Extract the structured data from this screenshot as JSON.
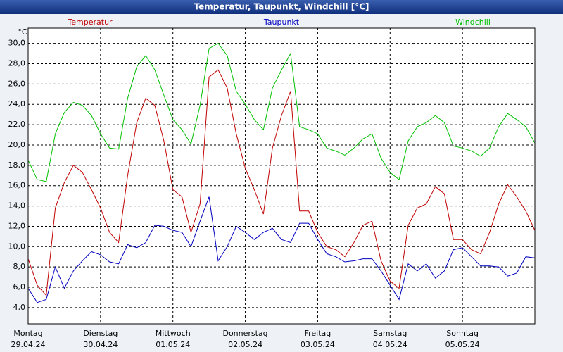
{
  "chart_data": {
    "type": "line",
    "title": "Temperatur, Taupunkt, Windchill [°C]",
    "y_label": "°C",
    "x": [
      0,
      3,
      6,
      9,
      12,
      15,
      18,
      21,
      24,
      27,
      30,
      33,
      36,
      39,
      42,
      45,
      48,
      51,
      54,
      57,
      60,
      63,
      66,
      69,
      72,
      75,
      78,
      81,
      84,
      87,
      90,
      93,
      96,
      99,
      102,
      105,
      108,
      111,
      114,
      117,
      120,
      123,
      126,
      129,
      132,
      135,
      138,
      141,
      144,
      147,
      150,
      153,
      156,
      159,
      162,
      165,
      168
    ],
    "xlim": [
      0,
      168
    ],
    "xticks": [
      {
        "value": 0,
        "label": "Montag"
      },
      {
        "value": 24,
        "label": "Dienstag"
      },
      {
        "value": 48,
        "label": "Mittwoch"
      },
      {
        "value": 72,
        "label": "Donnerstag"
      },
      {
        "value": 96,
        "label": "Freitag"
      },
      {
        "value": 120,
        "label": "Samstag"
      },
      {
        "value": 144,
        "label": "Sonntag"
      }
    ],
    "xtick_dates": [
      "29.04.24",
      "30.04.24",
      "01.05.24",
      "02.05.24",
      "03.05.24",
      "04.05.24",
      "05.05.24"
    ],
    "ylim": [
      2.4,
      31.5
    ],
    "yticks": [
      {
        "value": 4,
        "label": "4,0"
      },
      {
        "value": 6,
        "label": "6,0"
      },
      {
        "value": 8,
        "label": "8,0"
      },
      {
        "value": 10,
        "label": "10,0"
      },
      {
        "value": 12,
        "label": "12,0"
      },
      {
        "value": 14,
        "label": "14,0"
      },
      {
        "value": 16,
        "label": "16,0"
      },
      {
        "value": 18,
        "label": "18,0"
      },
      {
        "value": 20,
        "label": "20,0"
      },
      {
        "value": 22,
        "label": "22,0"
      },
      {
        "value": 24,
        "label": "24,0"
      },
      {
        "value": 26,
        "label": "26,0"
      },
      {
        "value": 28,
        "label": "28,0"
      },
      {
        "value": 30,
        "label": "30,0"
      }
    ],
    "grid": true,
    "series": [
      {
        "name": "Temperatur",
        "color": "#c00000",
        "values": [
          8.8,
          6.2,
          5.2,
          13.8,
          16.3,
          18.0,
          17.3,
          15.6,
          13.8,
          11.4,
          10.4,
          17.0,
          22.2,
          24.6,
          23.9,
          20.4,
          15.6,
          14.9,
          11.4,
          14.2,
          26.7,
          27.4,
          25.6,
          21.1,
          17.7,
          15.6,
          13.2,
          19.7,
          22.9,
          25.3,
          13.5,
          13.5,
          11.4,
          10.0,
          9.7,
          9.0,
          10.4,
          12.1,
          12.5,
          8.6,
          6.6,
          5.9,
          12.1,
          13.8,
          14.2,
          15.9,
          15.2,
          10.7,
          10.7,
          9.7,
          9.3,
          11.4,
          14.2,
          16.1,
          14.9,
          13.5,
          11.6
        ]
      },
      {
        "name": "Taupunkt",
        "color": "#0000c0",
        "values": [
          5.9,
          4.5,
          4.8,
          8.0,
          5.9,
          7.6,
          8.6,
          9.5,
          9.2,
          8.5,
          8.3,
          10.2,
          9.9,
          10.4,
          12.1,
          12.0,
          11.6,
          11.4,
          10.0,
          12.5,
          14.9,
          8.6,
          10.0,
          12.0,
          11.4,
          10.7,
          11.4,
          11.8,
          10.7,
          10.4,
          12.3,
          12.3,
          10.7,
          9.3,
          9.0,
          8.5,
          8.6,
          8.8,
          8.8,
          7.6,
          6.2,
          4.8,
          8.3,
          7.6,
          8.3,
          6.9,
          7.6,
          9.7,
          9.9,
          9.0,
          8.1,
          8.1,
          8.0,
          7.1,
          7.4,
          9.0,
          8.9
        ]
      },
      {
        "name": "Windchill",
        "color": "#00c000",
        "values": [
          18.5,
          16.6,
          16.4,
          21.1,
          23.2,
          24.2,
          23.9,
          22.9,
          21.1,
          19.7,
          19.6,
          24.6,
          27.7,
          28.8,
          27.4,
          24.9,
          22.5,
          21.5,
          20.1,
          23.9,
          29.5,
          30.0,
          28.8,
          25.3,
          24.0,
          22.5,
          21.5,
          25.6,
          27.4,
          29.0,
          21.8,
          21.5,
          21.1,
          19.7,
          19.4,
          19.0,
          19.7,
          20.6,
          21.1,
          18.7,
          17.3,
          16.6,
          20.4,
          21.8,
          22.2,
          22.9,
          22.2,
          19.9,
          19.7,
          19.4,
          18.9,
          19.7,
          21.8,
          23.1,
          22.5,
          21.8,
          20.2
        ]
      }
    ]
  }
}
